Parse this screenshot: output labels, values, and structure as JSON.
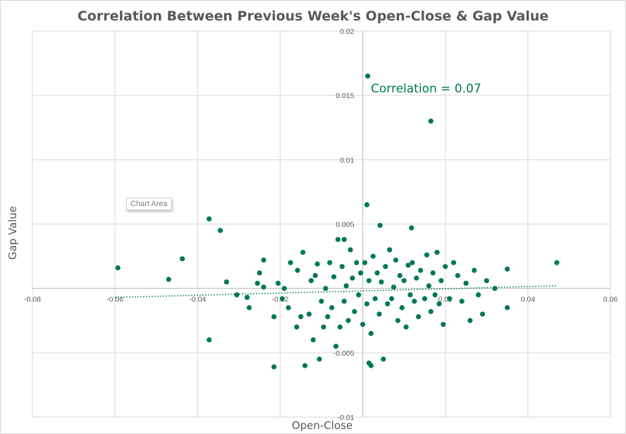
{
  "chart_data": {
    "type": "scatter",
    "title": "Correlation Between Previous Week's Open-Close & Gap Value",
    "xlabel": "Open-Close",
    "ylabel": "Gap Value",
    "xlim": [
      -0.08,
      0.06
    ],
    "ylim": [
      -0.01,
      0.02
    ],
    "x_ticks": [
      "-0.08",
      "-0.06",
      "-0.04",
      "-0.02",
      "0",
      "0.02",
      "0.04",
      "0.06"
    ],
    "y_ticks": [
      "-0.01",
      "-0.005",
      "0",
      "0.005",
      "0.01",
      "0.015",
      "0.02"
    ],
    "grid": true,
    "annotation": "Correlation = 0.07",
    "trendline": {
      "style": "dotted linear",
      "from": [
        -0.06,
        -0.0007
      ],
      "to": [
        0.047,
        0.0002
      ]
    },
    "marker_color": "#007a4d",
    "points": [
      [
        -0.0593,
        0.0016
      ],
      [
        -0.047,
        0.0007
      ],
      [
        -0.0437,
        0.0023
      ],
      [
        -0.0372,
        -0.004
      ],
      [
        -0.0372,
        0.0054
      ],
      [
        -0.0345,
        0.0045
      ],
      [
        -0.033,
        0.0005
      ],
      [
        -0.0305,
        -0.0005
      ],
      [
        -0.028,
        -0.0007
      ],
      [
        -0.0275,
        -0.0015
      ],
      [
        -0.0255,
        0.0004
      ],
      [
        -0.025,
        0.0012
      ],
      [
        -0.024,
        0.0001
      ],
      [
        -0.024,
        0.0022
      ],
      [
        -0.0215,
        -0.0022
      ],
      [
        -0.0205,
        0.0004
      ],
      [
        -0.0195,
        -0.0008
      ],
      [
        -0.019,
        0.0
      ],
      [
        -0.0175,
        0.002
      ],
      [
        -0.018,
        -0.0015
      ],
      [
        -0.016,
        -0.003
      ],
      [
        -0.0158,
        0.0014
      ],
      [
        -0.015,
        -0.0022
      ],
      [
        -0.0145,
        0.0028
      ],
      [
        -0.014,
        -0.006
      ],
      [
        -0.013,
        -0.002
      ],
      [
        -0.0125,
        0.0006
      ],
      [
        -0.012,
        -0.004
      ],
      [
        -0.0115,
        0.001
      ],
      [
        -0.0105,
        -0.0055
      ],
      [
        -0.011,
        0.0019
      ],
      [
        -0.01,
        -0.001
      ],
      [
        -0.0095,
        -0.003
      ],
      [
        -0.009,
        0.0
      ],
      [
        -0.0085,
        -0.0022
      ],
      [
        -0.008,
        0.002
      ],
      [
        -0.0075,
        -0.0015
      ],
      [
        -0.007,
        0.0009
      ],
      [
        -0.0065,
        -0.0045
      ],
      [
        -0.006,
        0.0038
      ],
      [
        -0.0055,
        -0.003
      ],
      [
        -0.005,
        0.0017
      ],
      [
        -0.0045,
        -0.001
      ],
      [
        -0.004,
        0.0002
      ],
      [
        -0.0035,
        -0.0025
      ],
      [
        -0.003,
        0.003
      ],
      [
        -0.0025,
        0.0008
      ],
      [
        -0.002,
        -0.0018
      ],
      [
        -0.0015,
        0.002
      ],
      [
        -0.001,
        -0.0005
      ],
      [
        -0.0005,
        0.0012
      ],
      [
        0.0,
        -0.0028
      ],
      [
        0.0005,
        0.002
      ],
      [
        0.001,
        -0.0012
      ],
      [
        0.0015,
        0.0006
      ],
      [
        0.002,
        -0.0035
      ],
      [
        0.0025,
        0.0025
      ],
      [
        0.003,
        -0.0008
      ],
      [
        0.0035,
        0.0012
      ],
      [
        0.004,
        -0.002
      ],
      [
        0.0045,
        0.0005
      ],
      [
        0.005,
        -0.0055
      ],
      [
        0.0055,
        0.0017
      ],
      [
        0.006,
        -0.0012
      ],
      [
        0.0065,
        0.003
      ],
      [
        0.007,
        -0.0008
      ],
      [
        0.0075,
        0.0001
      ],
      [
        0.008,
        0.0022
      ],
      [
        0.0085,
        -0.0025
      ],
      [
        0.009,
        0.001
      ],
      [
        0.0095,
        -0.0015
      ],
      [
        0.01,
        0.0006
      ],
      [
        0.0105,
        -0.003
      ],
      [
        0.011,
        0.0018
      ],
      [
        0.0115,
        -0.0005
      ],
      [
        0.012,
        0.002
      ],
      [
        0.0125,
        -0.001
      ],
      [
        0.013,
        0.0008
      ],
      [
        0.0135,
        -0.0022
      ],
      [
        0.014,
        0.0014
      ],
      [
        0.015,
        -0.0008
      ],
      [
        0.0155,
        0.0026
      ],
      [
        0.016,
        0.0002
      ],
      [
        0.0165,
        -0.0018
      ],
      [
        0.017,
        0.0012
      ],
      [
        0.0175,
        -0.0005
      ],
      [
        0.018,
        0.0028
      ],
      [
        0.0185,
        -0.0012
      ],
      [
        0.019,
        0.0006
      ],
      [
        0.0195,
        -0.0028
      ],
      [
        0.02,
        0.0017
      ],
      [
        0.021,
        -0.0008
      ],
      [
        0.022,
        0.002
      ],
      [
        0.023,
        0.001
      ],
      [
        0.024,
        -0.001
      ],
      [
        0.025,
        0.0004
      ],
      [
        0.026,
        -0.0025
      ],
      [
        0.027,
        0.0014
      ],
      [
        0.028,
        -0.0005
      ],
      [
        0.029,
        -0.002
      ],
      [
        0.03,
        0.0006
      ],
      [
        0.032,
        0.0
      ],
      [
        0.035,
        -0.0015
      ],
      [
        0.035,
        0.0015
      ],
      [
        0.047,
        0.002
      ],
      [
        0.0012,
        0.0165
      ],
      [
        0.0165,
        0.013
      ],
      [
        0.001,
        0.0065
      ],
      [
        0.0042,
        0.0049
      ],
      [
        0.0118,
        0.0047
      ],
      [
        0.0015,
        -0.0058
      ],
      [
        0.002,
        -0.006
      ],
      [
        -0.0215,
        -0.0061
      ],
      [
        -0.0045,
        0.0038
      ]
    ]
  }
}
